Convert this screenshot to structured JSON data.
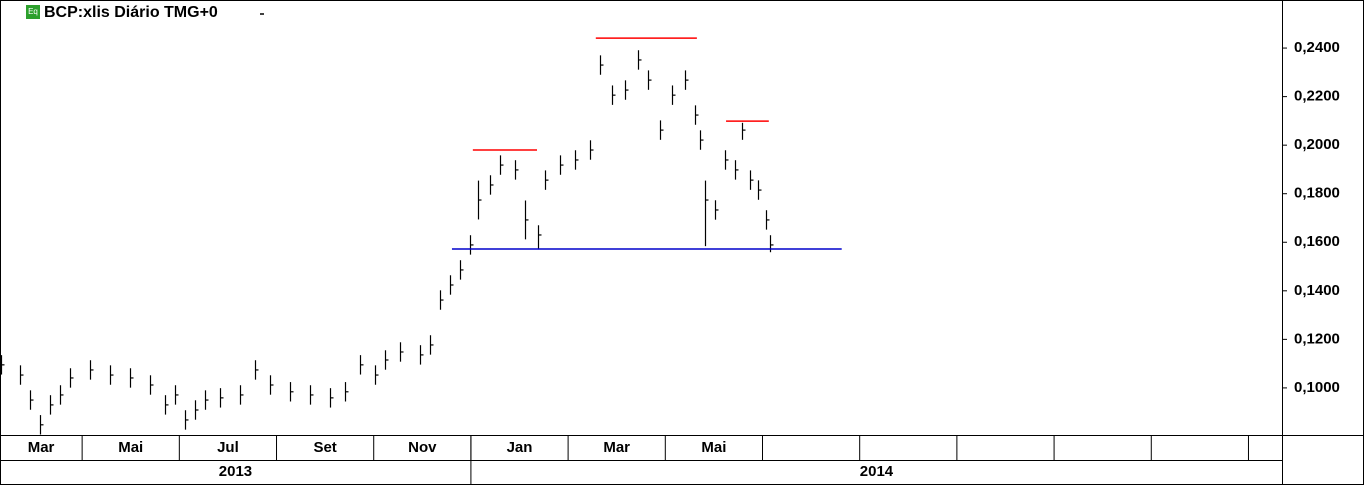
{
  "chart_data": {
    "type": "ohlc",
    "title": "BCP:xlis Diário TMG+0",
    "badge": "Eq",
    "color": "#000000",
    "x": [
      0.33,
      0.72,
      0.93,
      1.13,
      1.34,
      1.54,
      1.75,
      2.16,
      2.57,
      2.98,
      3.4,
      3.7,
      3.91,
      4.12,
      4.32,
      4.53,
      4.84,
      5.25,
      5.56,
      5.86,
      6.28,
      6.69,
      7.1,
      7.41,
      7.72,
      8.02,
      8.23,
      8.54,
      8.95,
      9.16,
      9.36,
      9.57,
      9.77,
      9.98,
      10.14,
      10.39,
      10.6,
      10.91,
      11.11,
      11.38,
      11.52,
      11.83,
      12.14,
      12.45,
      12.65,
      12.9,
      13.17,
      13.44,
      13.64,
      13.89,
      14.14,
      14.4,
      14.61,
      14.71,
      14.81,
      15.02,
      15.23,
      15.43,
      15.58,
      15.74,
      15.91,
      16.07,
      16.15
    ],
    "high": [
      0.1135,
      0.1093,
      0.099,
      0.0888,
      0.097,
      0.1011,
      0.1081,
      0.1114,
      0.1093,
      0.1081,
      0.1052,
      0.097,
      0.1011,
      0.0908,
      0.0949,
      0.099,
      0.0999,
      0.1011,
      0.1114,
      0.1052,
      0.1024,
      0.1011,
      0.0999,
      0.1024,
      0.1135,
      0.1093,
      0.1155,
      0.1188,
      0.1176,
      0.1217,
      0.1402,
      0.1464,
      0.1526,
      0.1629,
      0.1854,
      0.1876,
      0.1958,
      0.1938,
      0.1772,
      0.167,
      0.1896,
      0.1958,
      0.1979,
      0.202,
      0.237,
      0.2246,
      0.2267,
      0.2391,
      0.2308,
      0.2102,
      0.2246,
      0.2308,
      0.2164,
      0.2061,
      0.1854,
      0.1773,
      0.1979,
      0.1938,
      0.2092,
      0.1896,
      0.1855,
      0.1732,
      0.1629
    ],
    "low": [
      0.1055,
      0.1013,
      0.091,
      0.0808,
      0.089,
      0.0931,
      0.1001,
      0.1034,
      0.1013,
      0.1001,
      0.0972,
      0.089,
      0.0931,
      0.0828,
      0.0869,
      0.091,
      0.0919,
      0.0931,
      0.1034,
      0.0972,
      0.0944,
      0.0931,
      0.0919,
      0.0944,
      0.1055,
      0.1013,
      0.1075,
      0.1108,
      0.1096,
      0.1137,
      0.1322,
      0.1384,
      0.1446,
      0.1549,
      0.1694,
      0.1796,
      0.1878,
      0.1858,
      0.1612,
      0.157,
      0.1816,
      0.1878,
      0.1899,
      0.194,
      0.229,
      0.2166,
      0.2187,
      0.2311,
      0.2228,
      0.2022,
      0.2166,
      0.2228,
      0.2084,
      0.1981,
      0.1584,
      0.1693,
      0.1899,
      0.1858,
      0.2022,
      0.1816,
      0.1775,
      0.1652,
      0.1559
    ],
    "close": [
      0.1095,
      0.1053,
      0.095,
      0.0848,
      0.093,
      0.0971,
      0.1041,
      0.1074,
      0.1053,
      0.1041,
      0.1012,
      0.093,
      0.0971,
      0.0868,
      0.0909,
      0.095,
      0.0959,
      0.0971,
      0.1074,
      0.1012,
      0.0984,
      0.0971,
      0.0959,
      0.0984,
      0.1095,
      0.1053,
      0.1115,
      0.1148,
      0.1136,
      0.1177,
      0.1362,
      0.1424,
      0.1486,
      0.1589,
      0.1774,
      0.1836,
      0.1918,
      0.1898,
      0.1692,
      0.163,
      0.1856,
      0.1918,
      0.1939,
      0.198,
      0.233,
      0.2206,
      0.2227,
      0.2351,
      0.2268,
      0.2062,
      0.2206,
      0.2268,
      0.2124,
      0.2021,
      0.1774,
      0.1733,
      0.1939,
      0.1898,
      0.2062,
      0.1856,
      0.1815,
      0.1692,
      0.1589
    ],
    "lines": [
      {
        "color": "#ff0000",
        "x": [
          10.04,
          11.36
        ],
        "y": 0.198
      },
      {
        "color": "#ff0000",
        "x": [
          12.57,
          14.65
        ],
        "y": 0.2441
      },
      {
        "color": "#ff0000",
        "x": [
          15.25,
          16.13
        ],
        "y": 0.2099
      },
      {
        "color": "#0000cc",
        "x": [
          9.61,
          17.63
        ],
        "y": 0.1572
      }
    ],
    "xlim": [
      0.31,
      26.69
    ],
    "xticks": [
      {
        "value": 0,
        "label": "Mar"
      },
      {
        "value": 2,
        "label": "Mai"
      },
      {
        "value": 4,
        "label": "Jul"
      },
      {
        "value": 6,
        "label": "Set"
      },
      {
        "value": 8,
        "label": "Nov"
      },
      {
        "value": 10,
        "label": "Jan"
      },
      {
        "value": 12,
        "label": "Mar"
      },
      {
        "value": 14,
        "label": "Mai"
      },
      16,
      18,
      20,
      22,
      24,
      26
    ],
    "years": [
      {
        "value": 0,
        "label": "2013"
      },
      {
        "value": 10,
        "label": "2014"
      }
    ],
    "ylim": [
      0.0806,
      0.2598
    ],
    "yticks": [
      {
        "value": 0.1,
        "label": "0,1000"
      },
      {
        "value": 0.12,
        "label": "0,1200"
      },
      {
        "value": 0.14,
        "label": "0,1400"
      },
      {
        "value": 0.16,
        "label": "0,1600"
      },
      {
        "value": 0.18,
        "label": "0,1800"
      },
      {
        "value": 0.2,
        "label": "0,2000"
      },
      {
        "value": 0.22,
        "label": "0,2200"
      },
      {
        "value": 0.24,
        "label": "0,2400"
      }
    ]
  }
}
